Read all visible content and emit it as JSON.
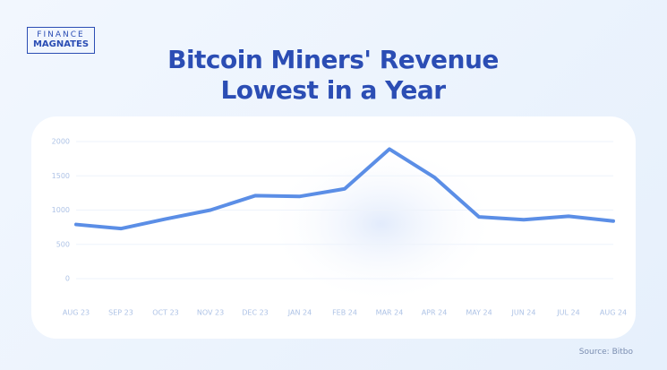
{
  "logo": {
    "line1": "FINANCE",
    "line2": "MAGNATES"
  },
  "chart_data": {
    "type": "line",
    "title": "Bitcoin Miners' Revenue Lowest in a Year",
    "categories": [
      "AUG 23",
      "SEP 23",
      "OCT 23",
      "NOV 23",
      "DEC 23",
      "JAN 24",
      "FEB 24",
      "MAR 24",
      "APR 24",
      "MAY 24",
      "JUN 24",
      "JUL 24",
      "AUG 24"
    ],
    "values": [
      790,
      730,
      870,
      1000,
      1210,
      1200,
      1310,
      1890,
      1480,
      900,
      860,
      910,
      840
    ],
    "color": "#5b8ee6",
    "ylim": [
      0,
      2000
    ],
    "yticks": [
      0,
      500,
      1000,
      1500,
      2000
    ],
    "grid": true
  },
  "source": "Source: Bitbo"
}
